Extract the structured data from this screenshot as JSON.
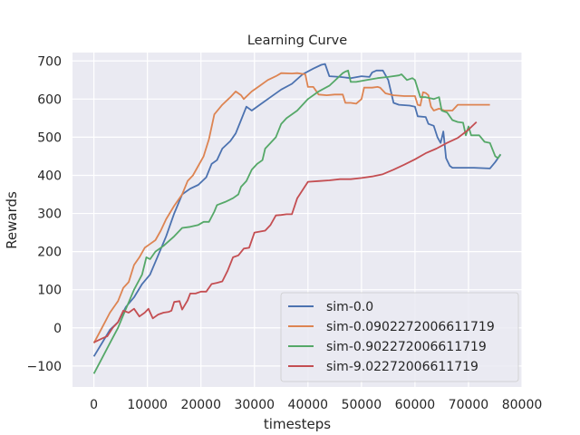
{
  "chart_data": {
    "type": "line",
    "title": "Learning Curve",
    "xlabel": "timesteps",
    "ylabel": "Rewards",
    "xlim": [
      -4000,
      80000
    ],
    "ylim": [
      -155,
      722
    ],
    "xticks": [
      0,
      10000,
      20000,
      30000,
      40000,
      50000,
      60000,
      70000,
      80000
    ],
    "yticks": [
      -100,
      0,
      100,
      200,
      300,
      400,
      500,
      600,
      700
    ],
    "grid": true,
    "legend_position": "lower-right",
    "background": "#eaeaf2",
    "series": [
      {
        "name": "sim-0.0",
        "color": "#4c72b0",
        "points": [
          [
            0,
            -75
          ],
          [
            1500,
            -40
          ],
          [
            3000,
            -5
          ],
          [
            4500,
            15
          ],
          [
            6000,
            55
          ],
          [
            7500,
            80
          ],
          [
            9000,
            115
          ],
          [
            10500,
            140
          ],
          [
            12000,
            190
          ],
          [
            13500,
            240
          ],
          [
            15000,
            300
          ],
          [
            16500,
            350
          ],
          [
            18000,
            365
          ],
          [
            19500,
            375
          ],
          [
            21000,
            395
          ],
          [
            22000,
            430
          ],
          [
            23000,
            440
          ],
          [
            24000,
            470
          ],
          [
            25500,
            490
          ],
          [
            26500,
            510
          ],
          [
            27500,
            545
          ],
          [
            28500,
            580
          ],
          [
            29500,
            570
          ],
          [
            31000,
            585
          ],
          [
            33000,
            605
          ],
          [
            35000,
            625
          ],
          [
            37000,
            640
          ],
          [
            39000,
            665
          ],
          [
            41000,
            680
          ],
          [
            42500,
            690
          ],
          [
            43200,
            692
          ],
          [
            44000,
            660
          ],
          [
            46000,
            658
          ],
          [
            48000,
            655
          ],
          [
            50000,
            660
          ],
          [
            51500,
            658
          ],
          [
            52000,
            670
          ],
          [
            52800,
            675
          ],
          [
            54000,
            675
          ],
          [
            55000,
            650
          ],
          [
            56000,
            590
          ],
          [
            57000,
            585
          ],
          [
            59000,
            583
          ],
          [
            60000,
            580
          ],
          [
            60500,
            555
          ],
          [
            62000,
            553
          ],
          [
            62500,
            535
          ],
          [
            63500,
            530
          ],
          [
            64200,
            500
          ],
          [
            64800,
            485
          ],
          [
            65300,
            515
          ],
          [
            65800,
            445
          ],
          [
            66500,
            425
          ],
          [
            67000,
            420
          ],
          [
            69000,
            420
          ],
          [
            71000,
            420
          ],
          [
            74000,
            418
          ],
          [
            75000,
            435
          ],
          [
            76000,
            455
          ]
        ]
      },
      {
        "name": "sim-0.0902272006611719",
        "color": "#dd8452",
        "points": [
          [
            0,
            -40
          ],
          [
            1500,
            0
          ],
          [
            3000,
            40
          ],
          [
            4500,
            70
          ],
          [
            5500,
            105
          ],
          [
            6500,
            120
          ],
          [
            7500,
            165
          ],
          [
            8500,
            185
          ],
          [
            9500,
            210
          ],
          [
            10500,
            220
          ],
          [
            11500,
            230
          ],
          [
            12500,
            255
          ],
          [
            13500,
            285
          ],
          [
            15000,
            320
          ],
          [
            16500,
            350
          ],
          [
            17500,
            385
          ],
          [
            18500,
            400
          ],
          [
            19500,
            425
          ],
          [
            20500,
            450
          ],
          [
            21500,
            495
          ],
          [
            22500,
            560
          ],
          [
            24000,
            585
          ],
          [
            25500,
            605
          ],
          [
            26500,
            620
          ],
          [
            27500,
            610
          ],
          [
            28000,
            600
          ],
          [
            29500,
            620
          ],
          [
            31000,
            635
          ],
          [
            32500,
            650
          ],
          [
            34000,
            660
          ],
          [
            35000,
            668
          ],
          [
            37000,
            667
          ],
          [
            38000,
            668
          ],
          [
            39500,
            665
          ],
          [
            40000,
            632
          ],
          [
            41000,
            632
          ],
          [
            42000,
            612
          ],
          [
            43500,
            610
          ],
          [
            45000,
            612
          ],
          [
            46500,
            612
          ],
          [
            47000,
            590
          ],
          [
            48000,
            590
          ],
          [
            49000,
            588
          ],
          [
            50000,
            600
          ],
          [
            50500,
            630
          ],
          [
            52000,
            630
          ],
          [
            53000,
            632
          ],
          [
            53500,
            630
          ],
          [
            54500,
            615
          ],
          [
            56000,
            610
          ],
          [
            58000,
            608
          ],
          [
            60000,
            608
          ],
          [
            60500,
            585
          ],
          [
            61000,
            583
          ],
          [
            61500,
            618
          ],
          [
            62000,
            616
          ],
          [
            62500,
            610
          ],
          [
            63000,
            580
          ],
          [
            63500,
            570
          ],
          [
            64500,
            575
          ],
          [
            65500,
            570
          ],
          [
            67000,
            570
          ],
          [
            68000,
            585
          ],
          [
            70000,
            585
          ],
          [
            74000,
            585
          ]
        ]
      },
      {
        "name": "sim-0.902272006611719",
        "color": "#55a868",
        "points": [
          [
            0,
            -120
          ],
          [
            1500,
            -80
          ],
          [
            3000,
            -40
          ],
          [
            4500,
            0
          ],
          [
            6000,
            50
          ],
          [
            7500,
            100
          ],
          [
            9000,
            140
          ],
          [
            9800,
            185
          ],
          [
            10500,
            180
          ],
          [
            11500,
            200
          ],
          [
            13000,
            215
          ],
          [
            15000,
            240
          ],
          [
            16500,
            262
          ],
          [
            18000,
            265
          ],
          [
            19500,
            270
          ],
          [
            20500,
            278
          ],
          [
            21500,
            278
          ],
          [
            22500,
            305
          ],
          [
            23000,
            322
          ],
          [
            24500,
            330
          ],
          [
            26000,
            340
          ],
          [
            27000,
            350
          ],
          [
            27500,
            370
          ],
          [
            28500,
            385
          ],
          [
            29500,
            415
          ],
          [
            30500,
            430
          ],
          [
            31500,
            440
          ],
          [
            32000,
            470
          ],
          [
            33000,
            485
          ],
          [
            34000,
            500
          ],
          [
            35000,
            535
          ],
          [
            36000,
            550
          ],
          [
            38000,
            570
          ],
          [
            40000,
            600
          ],
          [
            42000,
            620
          ],
          [
            44000,
            635
          ],
          [
            45000,
            648
          ],
          [
            46500,
            668
          ],
          [
            47000,
            672
          ],
          [
            47500,
            675
          ],
          [
            48000,
            645
          ],
          [
            49000,
            645
          ],
          [
            51000,
            650
          ],
          [
            53000,
            655
          ],
          [
            55000,
            658
          ],
          [
            57000,
            662
          ],
          [
            57500,
            665
          ],
          [
            58500,
            650
          ],
          [
            59500,
            655
          ],
          [
            60000,
            650
          ],
          [
            61000,
            605
          ],
          [
            62000,
            605
          ],
          [
            63500,
            600
          ],
          [
            64500,
            605
          ],
          [
            65000,
            570
          ],
          [
            66000,
            565
          ],
          [
            67000,
            545
          ],
          [
            68000,
            540
          ],
          [
            69000,
            538
          ],
          [
            69500,
            505
          ],
          [
            70000,
            528
          ],
          [
            70500,
            505
          ],
          [
            72000,
            505
          ],
          [
            73000,
            488
          ],
          [
            74000,
            485
          ],
          [
            75000,
            450
          ],
          [
            75500,
            445
          ],
          [
            76000,
            455
          ]
        ]
      },
      {
        "name": "sim-9.02272006611719",
        "color": "#c44e52",
        "points": [
          [
            0,
            -38
          ],
          [
            1500,
            -28
          ],
          [
            2500,
            -22
          ],
          [
            3500,
            0
          ],
          [
            4500,
            15
          ],
          [
            5500,
            45
          ],
          [
            6500,
            40
          ],
          [
            7500,
            50
          ],
          [
            8500,
            30
          ],
          [
            9500,
            40
          ],
          [
            10200,
            50
          ],
          [
            11000,
            25
          ],
          [
            12000,
            35
          ],
          [
            13000,
            40
          ],
          [
            14000,
            42
          ],
          [
            14500,
            45
          ],
          [
            15000,
            68
          ],
          [
            16000,
            70
          ],
          [
            16500,
            48
          ],
          [
            17500,
            72
          ],
          [
            18000,
            90
          ],
          [
            19000,
            90
          ],
          [
            20000,
            95
          ],
          [
            21000,
            95
          ],
          [
            22000,
            115
          ],
          [
            23000,
            118
          ],
          [
            24000,
            122
          ],
          [
            25000,
            150
          ],
          [
            26000,
            185
          ],
          [
            27000,
            190
          ],
          [
            28000,
            208
          ],
          [
            29000,
            210
          ],
          [
            30000,
            250
          ],
          [
            32000,
            255
          ],
          [
            33000,
            270
          ],
          [
            34000,
            295
          ],
          [
            35000,
            296
          ],
          [
            36000,
            298
          ],
          [
            37000,
            298
          ],
          [
            38000,
            340
          ],
          [
            40000,
            383
          ],
          [
            42000,
            385
          ],
          [
            44000,
            387
          ],
          [
            46000,
            390
          ],
          [
            48000,
            390
          ],
          [
            50000,
            393
          ],
          [
            52000,
            397
          ],
          [
            54000,
            403
          ],
          [
            56000,
            415
          ],
          [
            58000,
            428
          ],
          [
            60000,
            442
          ],
          [
            62000,
            458
          ],
          [
            64000,
            470
          ],
          [
            66000,
            485
          ],
          [
            68000,
            498
          ],
          [
            70000,
            520
          ],
          [
            71500,
            540
          ]
        ]
      }
    ]
  }
}
